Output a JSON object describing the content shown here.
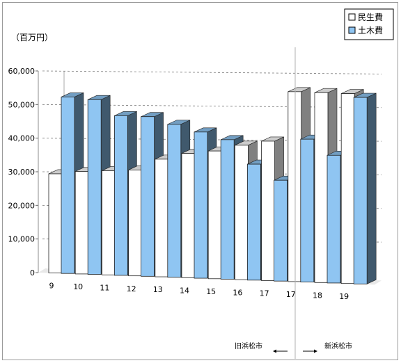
{
  "chart_data": {
    "type": "bar",
    "unit_label": "（百万円）",
    "categories": [
      "9",
      "10",
      "11",
      "12",
      "13",
      "14",
      "15",
      "16",
      "17",
      "17",
      "18",
      "19"
    ],
    "series": [
      {
        "name": "民生費",
        "color": "#ffffff",
        "values": [
          29500,
          30500,
          31000,
          31500,
          35000,
          37000,
          38000,
          40000,
          41500,
          56500,
          56500,
          56500
        ]
      },
      {
        "name": "土木費",
        "color": "#8fc5f2",
        "values": [
          52500,
          52000,
          47500,
          47500,
          45500,
          43500,
          41500,
          34500,
          30000,
          42500,
          38000,
          55500
        ]
      }
    ],
    "y_ticks": [
      "0",
      "10,000",
      "20,000",
      "30,000",
      "40,000",
      "50,000",
      "60,000"
    ],
    "ylim": [
      0,
      60000
    ],
    "legend_position": "top-right",
    "annotations": {
      "left": "旧浜松市",
      "right": "新浜松市"
    }
  }
}
